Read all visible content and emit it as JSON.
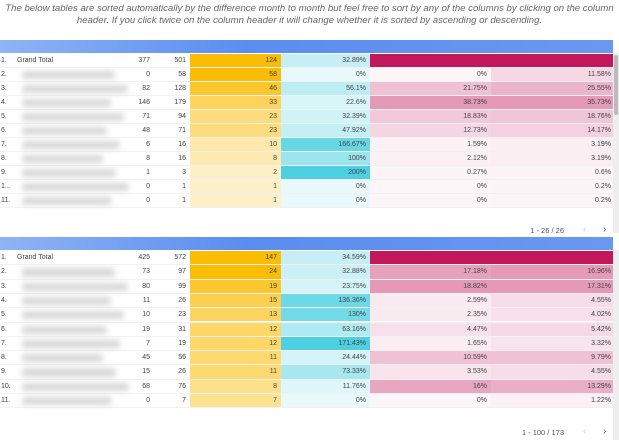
{
  "note": "The below tables are sorted automatically by the difference month to month but feel free to sort by any of the columns by clicking on the column header. If you click twice on the column header it will change whether it is sorted by ascending or descending.",
  "tables": [
    {
      "pagination": "1 - 26 / 26",
      "rows": [
        [
          "1.",
          "Grand Total",
          "377",
          "501",
          "124",
          "32.89%",
          null,
          null
        ],
        [
          "2.",
          null,
          "0",
          "58",
          "58",
          "0%",
          "0%",
          "11.58%"
        ],
        [
          "3.",
          null,
          "82",
          "128",
          "46",
          "56.1%",
          "21.75%",
          "25.55%"
        ],
        [
          "4.",
          null,
          "146",
          "179",
          "33",
          "22.6%",
          "38.73%",
          "35.73%"
        ],
        [
          "5.",
          null,
          "71",
          "94",
          "23",
          "32.39%",
          "18.83%",
          "18.76%"
        ],
        [
          "6.",
          null,
          "48",
          "71",
          "23",
          "47.92%",
          "12.73%",
          "14.17%"
        ],
        [
          "7.",
          null,
          "6",
          "16",
          "10",
          "166.67%",
          "1.59%",
          "3.19%"
        ],
        [
          "8.",
          null,
          "8",
          "16",
          "8",
          "100%",
          "2.12%",
          "3.19%"
        ],
        [
          "9.",
          null,
          "1",
          "3",
          "2",
          "200%",
          "0.27%",
          "0.6%"
        ],
        [
          "1...",
          null,
          "0",
          "1",
          "1",
          "0%",
          "0%",
          "0.2%"
        ],
        [
          "11.",
          null,
          "0",
          "1",
          "1",
          "0%",
          "0%",
          "0.2%"
        ]
      ]
    },
    {
      "pagination": "1 - 100 / 173",
      "rows": [
        [
          "1.",
          "Grand Total",
          "425",
          "572",
          "147",
          "34.59%",
          null,
          null
        ],
        [
          "2.",
          null,
          "73",
          "97",
          "24",
          "32.88%",
          "17.18%",
          "16.96%"
        ],
        [
          "3.",
          null,
          "80",
          "99",
          "19",
          "23.75%",
          "18.82%",
          "17.31%"
        ],
        [
          "4.",
          null,
          "11",
          "26",
          "15",
          "136.36%",
          "2.59%",
          "4.55%"
        ],
        [
          "5.",
          null,
          "10",
          "23",
          "13",
          "130%",
          "2.35%",
          "4.02%"
        ],
        [
          "6.",
          null,
          "19",
          "31",
          "12",
          "63.16%",
          "4.47%",
          "5.42%"
        ],
        [
          "7.",
          null,
          "7",
          "19",
          "12",
          "171.43%",
          "1.65%",
          "3.32%"
        ],
        [
          "8.",
          null,
          "45",
          "56",
          "11",
          "24.44%",
          "10.59%",
          "9.79%"
        ],
        [
          "9.",
          null,
          "15",
          "26",
          "11",
          "73.33%",
          "3.53%",
          "4.55%"
        ],
        [
          "10.",
          null,
          "68",
          "76",
          "8",
          "11.76%",
          "16%",
          "13.29%"
        ],
        [
          "11.",
          null,
          "0",
          "7",
          "7",
          "0%",
          "0%",
          "1.22%"
        ]
      ]
    }
  ]
}
